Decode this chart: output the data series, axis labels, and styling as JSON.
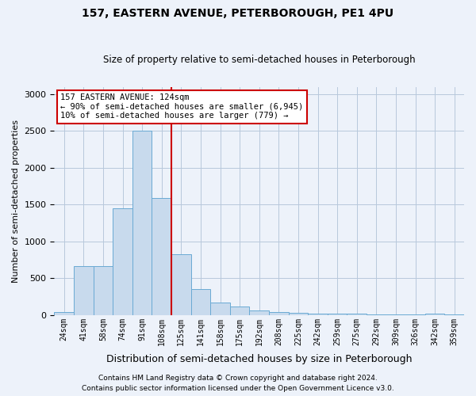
{
  "title1": "157, EASTERN AVENUE, PETERBOROUGH, PE1 4PU",
  "title2": "Size of property relative to semi-detached houses in Peterborough",
  "xlabel": "Distribution of semi-detached houses by size in Peterborough",
  "ylabel": "Number of semi-detached properties",
  "bin_labels": [
    "24sqm",
    "41sqm",
    "58sqm",
    "74sqm",
    "91sqm",
    "108sqm",
    "125sqm",
    "141sqm",
    "158sqm",
    "175sqm",
    "192sqm",
    "208sqm",
    "225sqm",
    "242sqm",
    "259sqm",
    "275sqm",
    "292sqm",
    "309sqm",
    "326sqm",
    "342sqm",
    "359sqm"
  ],
  "num_bins": 21,
  "bar_values": [
    40,
    660,
    660,
    1450,
    2500,
    1590,
    830,
    350,
    175,
    115,
    60,
    40,
    30,
    15,
    15,
    15,
    10,
    5,
    5,
    25,
    5
  ],
  "bar_color": "#c8daed",
  "bar_edge_color": "#6aaad4",
  "property_size_bin": 6,
  "vline_color": "#cc0000",
  "annotation_text": "157 EASTERN AVENUE: 124sqm\n← 90% of semi-detached houses are smaller (6,945)\n10% of semi-detached houses are larger (779) →",
  "annotation_box_color": "#ffffff",
  "annotation_box_edge_color": "#cc0000",
  "ylim": [
    0,
    3100
  ],
  "yticks": [
    0,
    500,
    1000,
    1500,
    2000,
    2500,
    3000
  ],
  "footer1": "Contains HM Land Registry data © Crown copyright and database right 2024.",
  "footer2": "Contains public sector information licensed under the Open Government Licence v3.0.",
  "bg_color": "#edf2fa"
}
